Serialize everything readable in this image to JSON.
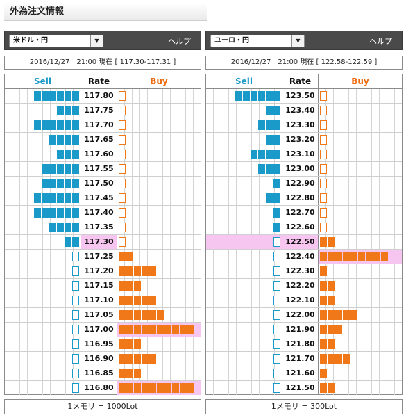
{
  "page_title": "外為注文情報",
  "colors": {
    "sell": "#1a9ac8",
    "buy": "#f07818",
    "highlight": "#f7c6f0",
    "header_bg": "#4a4a4a"
  },
  "column_headers": {
    "sell": "Sell",
    "rate": "Rate",
    "buy": "Buy"
  },
  "panels": [
    {
      "pair": "米ドル・円",
      "help": "ヘルプ",
      "timestamp": "2016/12/27　21:00 現在 [ 117.30-117.31 ]",
      "footer": "1メモリ = 1000Lot",
      "rows": [
        {
          "rate": "117.80",
          "sell": 6,
          "buy": 0.3
        },
        {
          "rate": "117.75",
          "sell": 3,
          "buy": 0.4
        },
        {
          "rate": "117.70",
          "sell": 6,
          "buy": 0.2
        },
        {
          "rate": "117.65",
          "sell": 4,
          "buy": 0.3
        },
        {
          "rate": "117.60",
          "sell": 3,
          "buy": 0.4
        },
        {
          "rate": "117.55",
          "sell": 5,
          "buy": 0.2
        },
        {
          "rate": "117.50",
          "sell": 5,
          "buy": 0.8
        },
        {
          "rate": "117.45",
          "sell": 6,
          "buy": 0.3
        },
        {
          "rate": "117.40",
          "sell": 6,
          "buy": 0.4
        },
        {
          "rate": "117.35",
          "sell": 4,
          "buy": 0.3
        },
        {
          "rate": "117.30",
          "sell": 2,
          "buy": 0.4,
          "current": true
        },
        {
          "rate": "117.25",
          "sell": 0.2,
          "buy": 2
        },
        {
          "rate": "117.20",
          "sell": 0.3,
          "buy": 5
        },
        {
          "rate": "117.15",
          "sell": 0.8,
          "buy": 3
        },
        {
          "rate": "117.10",
          "sell": 0.4,
          "buy": 5
        },
        {
          "rate": "117.05",
          "sell": 0.3,
          "buy": 6
        },
        {
          "rate": "117.00",
          "sell": 0.4,
          "buy": 10,
          "highlight": "buy"
        },
        {
          "rate": "116.95",
          "sell": 0.4,
          "buy": 3
        },
        {
          "rate": "116.90",
          "sell": 0.4,
          "buy": 5
        },
        {
          "rate": "116.85",
          "sell": 0.3,
          "buy": 3
        },
        {
          "rate": "116.80",
          "sell": 0.7,
          "buy": 10,
          "highlight": "buy"
        }
      ]
    },
    {
      "pair": "ユーロ・円",
      "help": "ヘルプ",
      "timestamp": "2016/12/27　21:00 現在 [ 122.58-122.59 ]",
      "footer": "1メモリ = 300Lot",
      "rows": [
        {
          "rate": "123.50",
          "sell": 6,
          "buy": 0.3
        },
        {
          "rate": "123.40",
          "sell": 2,
          "buy": 0.3
        },
        {
          "rate": "123.30",
          "sell": 3,
          "buy": 0.3
        },
        {
          "rate": "123.20",
          "sell": 2,
          "buy": 0.3
        },
        {
          "rate": "123.10",
          "sell": 4,
          "buy": 0.3
        },
        {
          "rate": "123.00",
          "sell": 3,
          "buy": 0.3
        },
        {
          "rate": "122.90",
          "sell": 1,
          "buy": 0.3
        },
        {
          "rate": "122.80",
          "sell": 2,
          "buy": 0.6
        },
        {
          "rate": "122.70",
          "sell": 1,
          "buy": 0.3
        },
        {
          "rate": "122.60",
          "sell": 1,
          "buy": 0.3
        },
        {
          "rate": "122.50",
          "sell": 0.2,
          "buy": 2,
          "current": true,
          "highlight": "sell"
        },
        {
          "rate": "122.40",
          "sell": 0.2,
          "buy": 9,
          "highlight": "buy"
        },
        {
          "rate": "122.30",
          "sell": 0.2,
          "buy": 1
        },
        {
          "rate": "122.20",
          "sell": 0.2,
          "buy": 2
        },
        {
          "rate": "122.10",
          "sell": 0.2,
          "buy": 2
        },
        {
          "rate": "122.00",
          "sell": 0.2,
          "buy": 5
        },
        {
          "rate": "121.90",
          "sell": 0.2,
          "buy": 3
        },
        {
          "rate": "121.80",
          "sell": 0.2,
          "buy": 2
        },
        {
          "rate": "121.70",
          "sell": 0.2,
          "buy": 4
        },
        {
          "rate": "121.60",
          "sell": 0.2,
          "buy": 1
        },
        {
          "rate": "121.50",
          "sell": 0.2,
          "buy": 2
        }
      ]
    }
  ]
}
